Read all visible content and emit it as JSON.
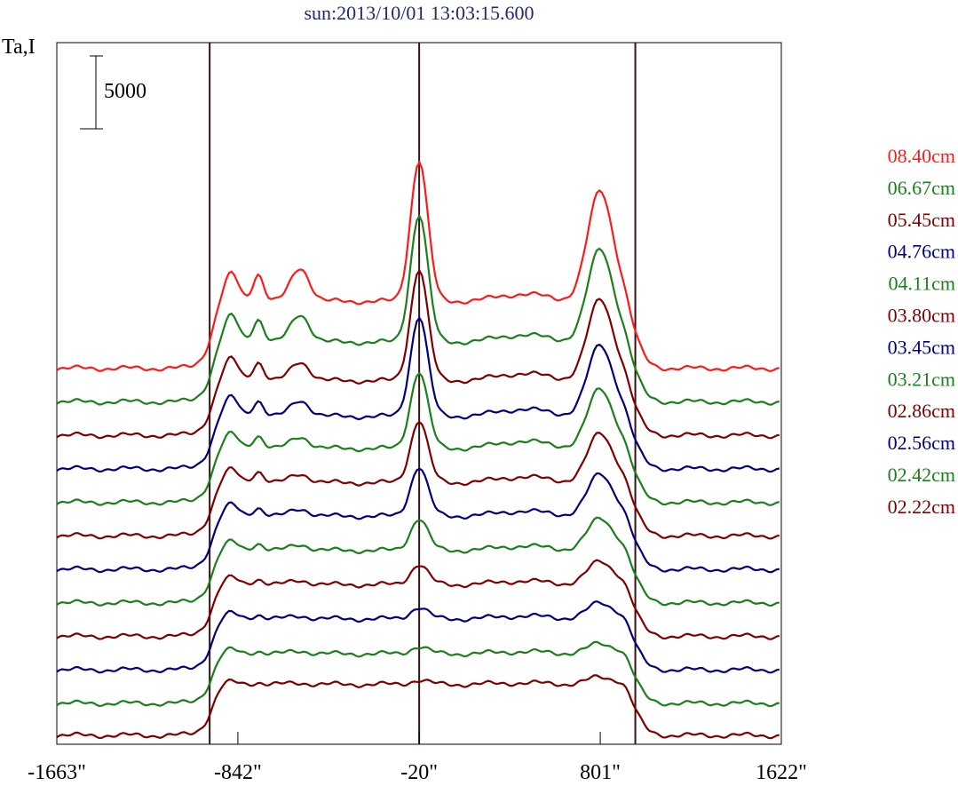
{
  "chart_data": {
    "type": "line",
    "title": "sun:2013/10/01 13:03:15.600",
    "ylabel": "Ta,I",
    "xlabel": "",
    "xlim": [
      -1663,
      1622
    ],
    "x_ticks": [
      {
        "value": -1663,
        "label": "-1663\""
      },
      {
        "value": -842,
        "label": "-842\""
      },
      {
        "value": -20,
        "label": "-20\""
      },
      {
        "value": 801,
        "label": "801\""
      },
      {
        "value": 1622,
        "label": "1622\""
      }
    ],
    "vertical_lines": [
      -970,
      -20,
      960
    ],
    "scale_bar": {
      "value": 5000,
      "label": "5000"
    },
    "grid": false,
    "legend_position": "right",
    "offset_between_traces": 2300,
    "series": [
      {
        "name": "08.40cm",
        "color": "#ff1a1a",
        "baseline": 24600,
        "disk": 4600,
        "limb_peak": 2800,
        "bumps": [
          [
            -870,
            1900,
            45
          ],
          [
            -750,
            1900,
            35
          ],
          [
            -560,
            2300,
            60
          ],
          [
            -20,
            9700,
            55
          ],
          [
            450,
            500,
            160
          ],
          [
            801,
            7600,
            80
          ]
        ]
      },
      {
        "name": "06.67cm",
        "color": "#1a801a",
        "baseline": 22300,
        "disk": 4100,
        "limb_peak": 2700,
        "bumps": [
          [
            -870,
            1800,
            45
          ],
          [
            -750,
            1600,
            35
          ],
          [
            -560,
            1900,
            60
          ],
          [
            -20,
            8800,
            55
          ],
          [
            450,
            500,
            160
          ],
          [
            801,
            6400,
            80
          ]
        ]
      },
      {
        "name": "05.45cm",
        "color": "#800000",
        "baseline": 20000,
        "disk": 3750,
        "limb_peak": 2600,
        "bumps": [
          [
            -870,
            1500,
            45
          ],
          [
            -750,
            1300,
            35
          ],
          [
            -560,
            1300,
            60
          ],
          [
            -20,
            7700,
            55
          ],
          [
            450,
            500,
            160
          ],
          [
            801,
            5600,
            80
          ]
        ]
      },
      {
        "name": "04.76cm",
        "color": "#000080",
        "baseline": 17700,
        "disk": 3600,
        "limb_peak": 2500,
        "bumps": [
          [
            -870,
            1300,
            45
          ],
          [
            -750,
            1100,
            35
          ],
          [
            -560,
            1100,
            60
          ],
          [
            -20,
            6900,
            55
          ],
          [
            450,
            500,
            160
          ],
          [
            801,
            4900,
            80
          ]
        ]
      },
      {
        "name": "04.11cm",
        "color": "#1a801a",
        "baseline": 15400,
        "disk": 3700,
        "limb_peak": 2400,
        "bumps": [
          [
            -870,
            1000,
            45
          ],
          [
            -750,
            900,
            35
          ],
          [
            -560,
            800,
            60
          ],
          [
            -20,
            5300,
            55
          ],
          [
            450,
            500,
            160
          ],
          [
            801,
            4100,
            80
          ]
        ]
      },
      {
        "name": "03.80cm",
        "color": "#800000",
        "baseline": 13100,
        "disk": 3650,
        "limb_peak": 2300,
        "bumps": [
          [
            -870,
            900,
            45
          ],
          [
            -750,
            800,
            35
          ],
          [
            -560,
            600,
            60
          ],
          [
            -20,
            4300,
            55
          ],
          [
            450,
            400,
            160
          ],
          [
            801,
            3400,
            80
          ]
        ]
      },
      {
        "name": "03.45cm",
        "color": "#000080",
        "baseline": 10800,
        "disk": 3650,
        "limb_peak": 2200,
        "bumps": [
          [
            -870,
            800,
            45
          ],
          [
            -750,
            600,
            35
          ],
          [
            -560,
            500,
            60
          ],
          [
            -20,
            3400,
            55
          ],
          [
            450,
            350,
            160
          ],
          [
            801,
            2900,
            80
          ]
        ]
      },
      {
        "name": "03.21cm",
        "color": "#1a801a",
        "baseline": 8500,
        "disk": 3600,
        "limb_peak": 2100,
        "bumps": [
          [
            -870,
            600,
            45
          ],
          [
            -750,
            500,
            35
          ],
          [
            -560,
            400,
            60
          ],
          [
            -20,
            2200,
            55
          ],
          [
            450,
            300,
            160
          ],
          [
            801,
            2200,
            80
          ]
        ]
      },
      {
        "name": "02.86cm",
        "color": "#800000",
        "baseline": 6200,
        "disk": 3550,
        "limb_peak": 2000,
        "bumps": [
          [
            -870,
            500,
            45
          ],
          [
            -750,
            400,
            35
          ],
          [
            -560,
            300,
            60
          ],
          [
            -20,
            1400,
            55
          ],
          [
            450,
            250,
            160
          ],
          [
            801,
            1600,
            80
          ]
        ]
      },
      {
        "name": "02.56cm",
        "color": "#000080",
        "baseline": 3900,
        "disk": 3500,
        "limb_peak": 1900,
        "bumps": [
          [
            -870,
            400,
            45
          ],
          [
            -750,
            300,
            35
          ],
          [
            -560,
            200,
            60
          ],
          [
            -20,
            800,
            55
          ],
          [
            450,
            200,
            160
          ],
          [
            801,
            1100,
            80
          ]
        ]
      },
      {
        "name": "02.42cm",
        "color": "#1a801a",
        "baseline": 1600,
        "disk": 3400,
        "limb_peak": 1800,
        "bumps": [
          [
            -870,
            300,
            45
          ],
          [
            -750,
            200,
            35
          ],
          [
            -560,
            200,
            60
          ],
          [
            -20,
            500,
            55
          ],
          [
            450,
            150,
            160
          ],
          [
            801,
            700,
            80
          ]
        ]
      },
      {
        "name": "02.22cm",
        "color": "#800000",
        "baseline": -600,
        "disk": 3500,
        "limb_peak": 1700,
        "bumps": [
          [
            -870,
            200,
            45
          ],
          [
            -750,
            150,
            35
          ],
          [
            -560,
            100,
            60
          ],
          [
            -20,
            300,
            55
          ],
          [
            450,
            100,
            160
          ],
          [
            801,
            500,
            80
          ]
        ]
      }
    ]
  }
}
